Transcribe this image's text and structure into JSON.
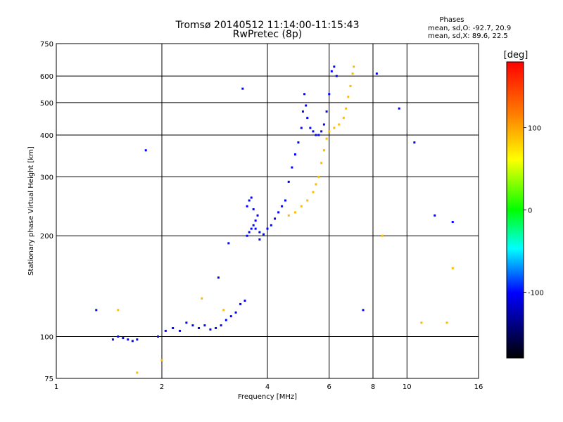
{
  "chart_data": {
    "type": "scatter",
    "title": "Tromsø 20140512 11:14:00-11:15:43",
    "subtitle": "RwPretec (8p)",
    "xlabel": "Frequency [MHz]",
    "ylabel": "Stationary phase Virtual Height [km]",
    "x_scale": "log",
    "y_scale": "log",
    "xlim": [
      1,
      16
    ],
    "ylim": [
      75,
      750
    ],
    "x_ticks": [
      1,
      2,
      4,
      6,
      8,
      10,
      16
    ],
    "y_ticks": [
      75,
      100,
      200,
      300,
      400,
      500,
      600,
      750
    ],
    "x_gridlines": [
      2,
      4,
      6,
      8,
      10
    ],
    "y_gridlines": [
      100,
      200,
      300,
      400,
      500,
      600
    ],
    "grid": true,
    "stats_heading": "Phases",
    "stats_o": "mean, sd,O: -92.7, 20.9",
    "stats_x": "mean, sd,X:  89.6, 22.5",
    "colorbar": {
      "label": "[deg]",
      "range": [
        -180,
        180
      ],
      "ticks": [
        100,
        0,
        -100
      ],
      "colors": [
        "#ff0000",
        "#ff8000",
        "#ffff00",
        "#00ff00",
        "#00ffff",
        "#0000ff",
        "#000000"
      ]
    },
    "series": [
      {
        "points": [
          [
            1.45,
            98
          ],
          [
            1.5,
            100
          ],
          [
            1.55,
            99
          ],
          [
            1.6,
            98
          ],
          [
            1.65,
            97
          ],
          [
            1.7,
            98
          ],
          [
            1.95,
            100
          ],
          [
            2.05,
            104
          ],
          [
            2.15,
            106
          ],
          [
            2.25,
            104
          ],
          [
            2.35,
            110
          ],
          [
            2.45,
            108
          ],
          [
            2.55,
            106
          ],
          [
            2.65,
            108
          ],
          [
            2.75,
            105
          ],
          [
            2.85,
            106
          ],
          [
            2.95,
            108
          ],
          [
            3.05,
            112
          ],
          [
            3.15,
            115
          ],
          [
            3.25,
            118
          ],
          [
            3.35,
            125
          ],
          [
            3.45,
            128
          ],
          [
            3.5,
            200
          ],
          [
            3.55,
            205
          ],
          [
            3.6,
            210
          ],
          [
            3.65,
            215
          ],
          [
            3.7,
            222
          ],
          [
            3.75,
            230
          ],
          [
            3.5,
            245
          ],
          [
            3.55,
            255
          ],
          [
            3.6,
            260
          ],
          [
            3.65,
            240
          ],
          [
            3.7,
            210
          ],
          [
            3.8,
            205
          ],
          [
            3.9,
            202
          ],
          [
            4.0,
            210
          ],
          [
            4.1,
            215
          ],
          [
            4.2,
            225
          ],
          [
            4.3,
            235
          ],
          [
            4.4,
            245
          ],
          [
            4.5,
            255
          ],
          [
            4.6,
            290
          ],
          [
            4.7,
            320
          ],
          [
            4.8,
            350
          ],
          [
            4.9,
            380
          ],
          [
            5.0,
            420
          ],
          [
            5.05,
            470
          ],
          [
            5.1,
            530
          ],
          [
            5.15,
            490
          ],
          [
            5.2,
            450
          ],
          [
            5.3,
            420
          ],
          [
            5.4,
            410
          ],
          [
            5.5,
            400
          ],
          [
            5.6,
            400
          ],
          [
            5.7,
            410
          ],
          [
            5.8,
            430
          ],
          [
            5.9,
            470
          ],
          [
            6.0,
            530
          ],
          [
            6.1,
            620
          ],
          [
            6.2,
            640
          ],
          [
            6.3,
            600
          ],
          [
            1.3,
            120
          ],
          [
            1.8,
            360
          ],
          [
            2.9,
            150
          ],
          [
            3.1,
            190
          ],
          [
            3.4,
            550
          ],
          [
            3.8,
            195
          ],
          [
            7.5,
            120
          ],
          [
            8.2,
            610
          ],
          [
            9.5,
            480
          ],
          [
            10.5,
            380
          ],
          [
            12.0,
            230
          ],
          [
            13.5,
            220
          ]
        ],
        "phase": -100
      },
      {
        "points": [
          [
            4.6,
            230
          ],
          [
            4.8,
            235
          ],
          [
            5.0,
            245
          ],
          [
            5.2,
            255
          ],
          [
            5.4,
            270
          ],
          [
            5.5,
            285
          ],
          [
            5.6,
            300
          ],
          [
            5.7,
            330
          ],
          [
            5.8,
            360
          ],
          [
            5.9,
            390
          ],
          [
            6.0,
            410
          ],
          [
            6.2,
            420
          ],
          [
            6.4,
            430
          ],
          [
            6.6,
            450
          ],
          [
            6.7,
            480
          ],
          [
            6.8,
            520
          ],
          [
            6.9,
            560
          ],
          [
            7.0,
            610
          ],
          [
            7.05,
            640
          ],
          [
            1.5,
            120
          ],
          [
            1.7,
            78
          ],
          [
            2.0,
            85
          ],
          [
            2.6,
            130
          ],
          [
            3.0,
            120
          ],
          [
            8.5,
            200
          ],
          [
            13.5,
            160
          ],
          [
            13.0,
            110
          ],
          [
            11.0,
            110
          ]
        ],
        "phase": 90
      }
    ]
  }
}
